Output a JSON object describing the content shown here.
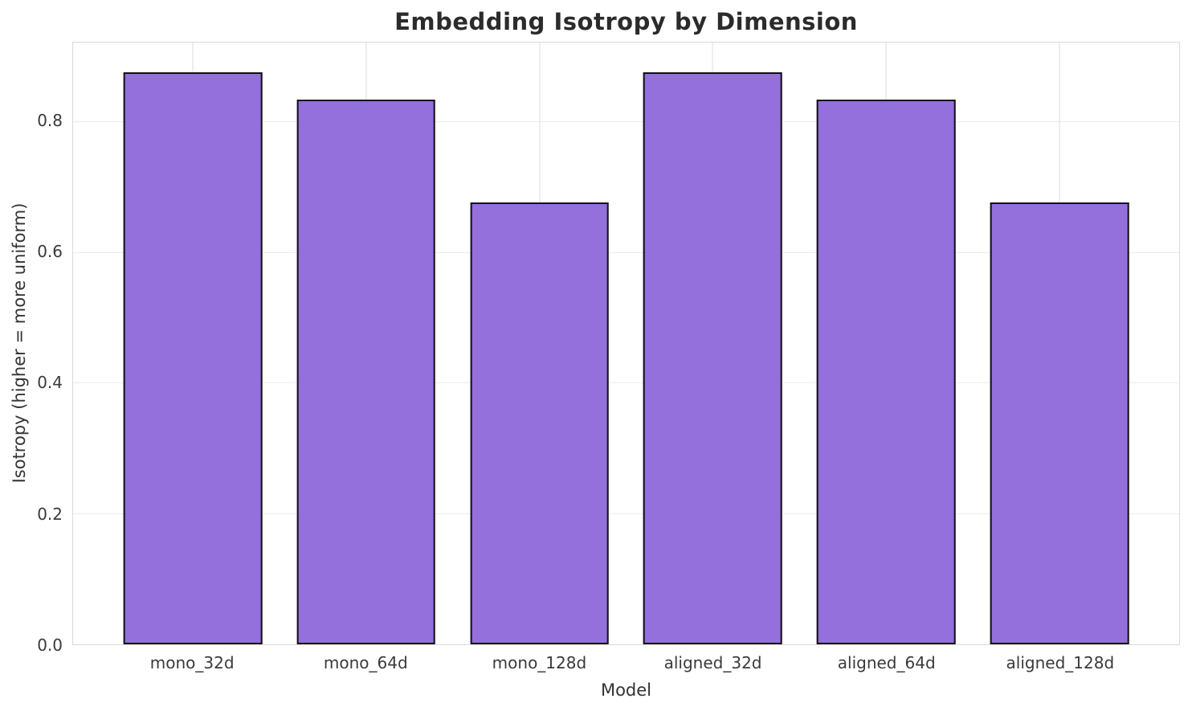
{
  "figure": {
    "title": "Embedding Isotropy by Dimension",
    "xlabel": "Model",
    "ylabel": "Isotropy (higher = more uniform)"
  },
  "chart_data": {
    "type": "bar",
    "title": "Embedding Isotropy by Dimension",
    "xlabel": "Model",
    "ylabel": "Isotropy (higher = more uniform)",
    "categories": [
      "mono_32d",
      "mono_64d",
      "mono_128d",
      "aligned_32d",
      "aligned_64d",
      "aligned_128d"
    ],
    "values": [
      0.875,
      0.833,
      0.676,
      0.875,
      0.833,
      0.676
    ],
    "ylim": [
      0,
      0.92
    ],
    "yticks": [
      0.0,
      0.2,
      0.4,
      0.6,
      0.8
    ],
    "ytick_labels": [
      "0.0",
      "0.2",
      "0.4",
      "0.6",
      "0.8"
    ],
    "grid": true,
    "legend_position": "none",
    "bar_width_fraction": 0.8,
    "colors": {
      "bar_fill": "#9370db",
      "bar_edge": "#111111",
      "hgrid": "#ededed",
      "vgrid": "#dcdcdc",
      "spine": "#d9d9d9",
      "tick_text": "#3a3a3a",
      "label_text": "#333333",
      "title_text": "#2b2b2b",
      "background": "#ffffff"
    }
  }
}
